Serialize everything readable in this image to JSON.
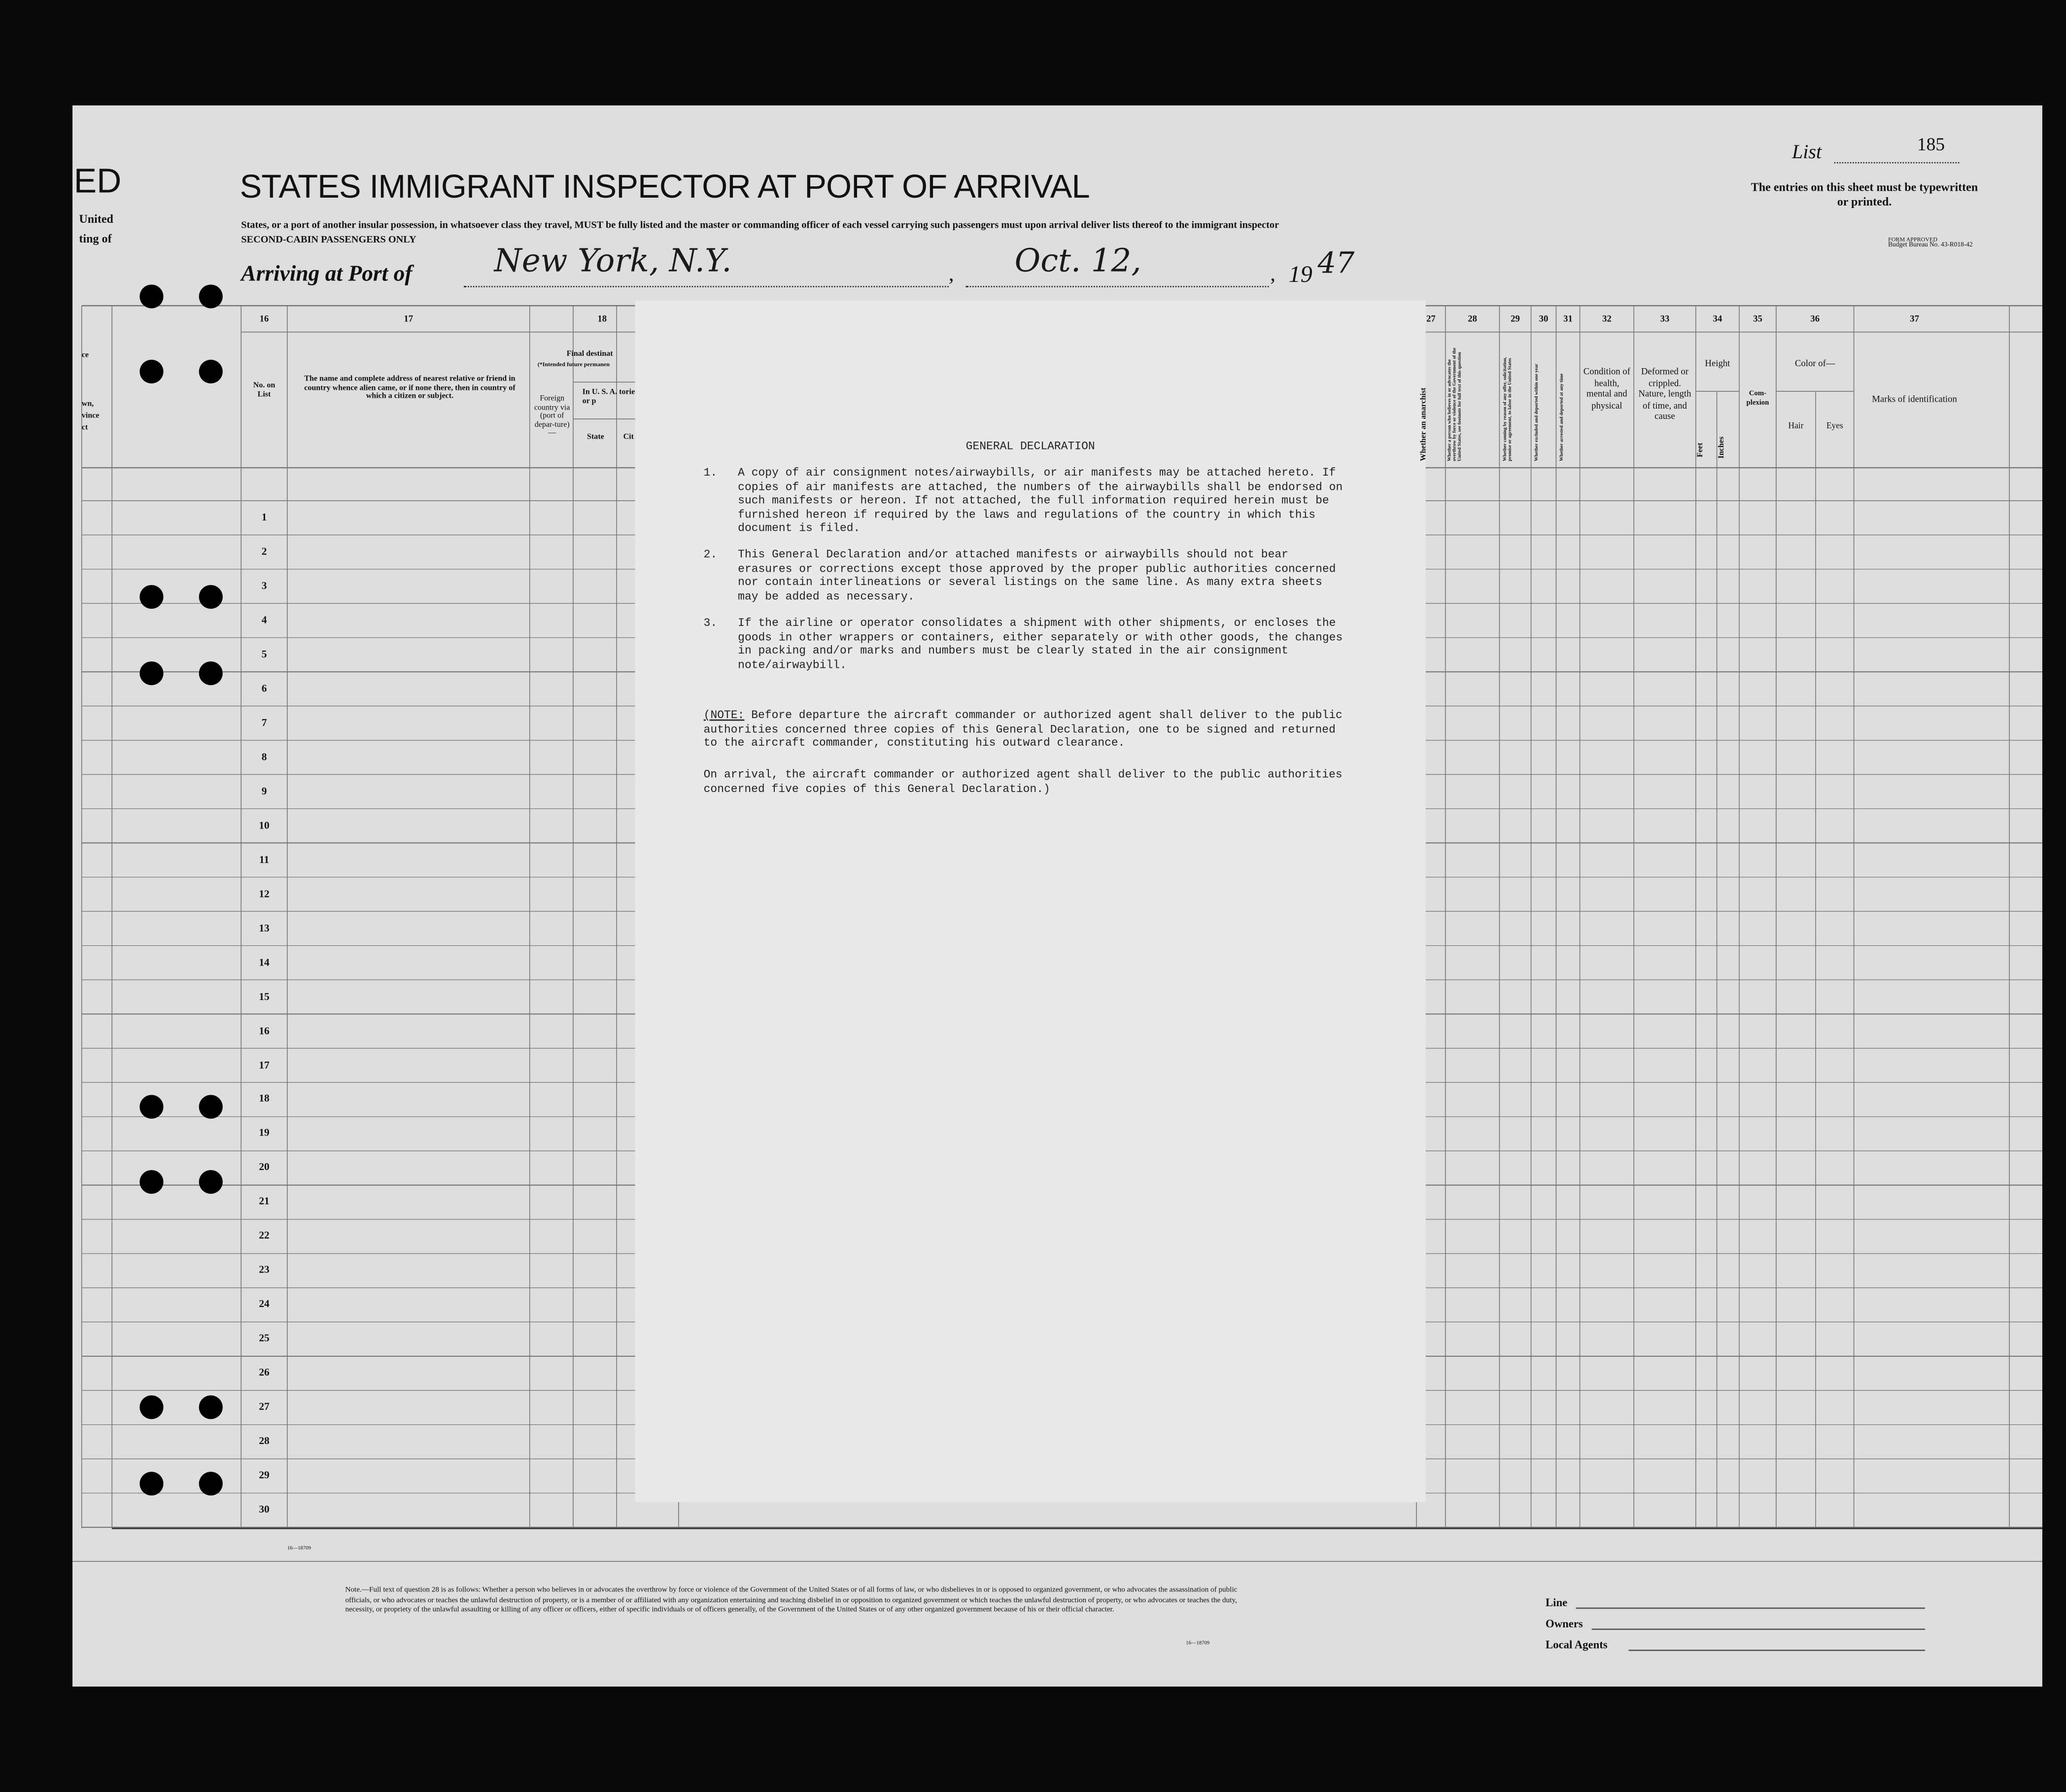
{
  "header": {
    "title_fragment": "ED",
    "left_fragments": [
      "United",
      "ting of"
    ],
    "title": "STATES IMMIGRANT INSPECTOR AT PORT OF ARRIVAL",
    "subtitle": "States, or a port of another insular possession, in whatsoever class they travel, MUST be fully listed and the master or commanding officer of each vessel carrying such passengers must upon arrival deliver lists thereof to the immigrant inspector",
    "cabin": "SECOND-CABIN PASSENGERS ONLY",
    "arriving_label": "Arriving at Port of",
    "port": "New York, N.Y.",
    "date": "Oct. 12,",
    "year_printed": "19",
    "year_written": "47",
    "list_label": "List",
    "list_number": "185",
    "entries_note": "The entries on this sheet must be typewritten or printed.",
    "form_approved": "Form Approved",
    "budget_bureau": "Budget Bureau No. 43-R018-42"
  },
  "left_column": {
    "fragments": [
      "ce",
      "wn,",
      "vince",
      "ct"
    ]
  },
  "columns": {
    "c16": {
      "number": "16",
      "label": "No. on List"
    },
    "c17": {
      "number": "17",
      "label": "The name and complete address of nearest relative or friend in country whence alien came, or if none there, then in country of which a citizen or subject."
    },
    "c18": {
      "number": "18",
      "label": "Final destinat",
      "sublabel": "(*Intended future permanen",
      "foreign": "Foreign country via (port of depar-ture)—",
      "usa": "In U. S. A. tories or p",
      "state": "State",
      "city": "Cit"
    },
    "c27": {
      "number": "27",
      "label": "Whether an anarchist"
    },
    "c28": {
      "number": "28",
      "label": "Whether a person who believes in or advocates the overthrow by force or violence of the Government of the United States, see footnote for full text of this question"
    },
    "c29": {
      "number": "29",
      "label": "Whether coming by reason of any offer, solicitation, promise or agreement, to labor in the United States"
    },
    "c30": {
      "number": "30",
      "label": "Whether excluded and deported within one year"
    },
    "c31": {
      "number": "31",
      "label": "Whether arrested and deported at any time"
    },
    "c32": {
      "number": "32",
      "label": "Condition of health, mental and physical"
    },
    "c33": {
      "number": "33",
      "label": "Deformed or crippled. Nature, length of time, and cause"
    },
    "c34": {
      "number": "34",
      "label": "Height",
      "feet": "Feet",
      "inches": "Inches"
    },
    "c35": {
      "number": "35",
      "label": "Com-plexion"
    },
    "c36": {
      "number": "36",
      "label": "Color of—",
      "hair": "Hair",
      "eyes": "Eyes"
    },
    "c37": {
      "number": "37",
      "label": "Marks of identification"
    }
  },
  "rows": [
    "1",
    "2",
    "3",
    "4",
    "5",
    "6",
    "7",
    "8",
    "9",
    "10",
    "11",
    "12",
    "13",
    "14",
    "15",
    "16",
    "17",
    "18",
    "19",
    "20",
    "21",
    "22",
    "23",
    "24",
    "25",
    "26",
    "27",
    "28",
    "29",
    "30"
  ],
  "declaration": {
    "title": "GENERAL DECLARATION",
    "items": [
      {
        "number": "1.",
        "text": "A copy of air consignment notes/airwaybills, or air manifests may be attached hereto. If copies of air manifests are attached, the numbers of the airwaybills shall be endorsed on such manifests or hereon. If not attached, the full information required herein must be furnished hereon if required by the laws and regulations of the country in which this document is filed."
      },
      {
        "number": "2.",
        "text": "This General Declaration and/or attached manifests or airwaybills should not bear erasures or corrections except those approved by the proper public authorities concerned nor contain interlineations or several listings on the same line. As many extra sheets may be added as necessary."
      },
      {
        "number": "3.",
        "text": "If the airline or operator consolidates a shipment with other shipments, or encloses the goods in other wrappers or containers, either separately or with other goods, the changes in packing and/or marks and numbers must be clearly stated in the air consignment note/airwaybill."
      }
    ],
    "note_label": "NOTE:",
    "note": "Before departure the aircraft commander or authorized agent shall deliver to the public authorities concerned three copies of this General Declaration, one to be signed and returned to the aircraft commander, constituting his outward clearance.",
    "arrival": "On arrival, the aircraft commander or authorized agent shall deliver to the public authorities concerned five copies of this General Declaration.)"
  },
  "footer": {
    "note": "Note.—Full text of question 28 is as follows: Whether a person who believes in or advocates the overthrow by force or violence of the Government of the United States or of all forms of law, or who disbelieves in or is opposed to organized government, or who advocates the assassination of public officials, or who advocates or teaches the unlawful destruction of property, or is a member of or affiliated with any organization entertaining and teaching disbelief in or opposition to organized government or which teaches the unlawful destruction of property, or who advocates or teaches the duty, necessity, or propriety of the unlawful assaulting or killing of any officer or officers, either of specific individuals or of officers generally, of the Government of the United States or of any other organized government because of his or their official character.",
    "form_number": "16—18709",
    "line": "Line",
    "owners": "Owners",
    "local_agents": "Local Agents"
  }
}
